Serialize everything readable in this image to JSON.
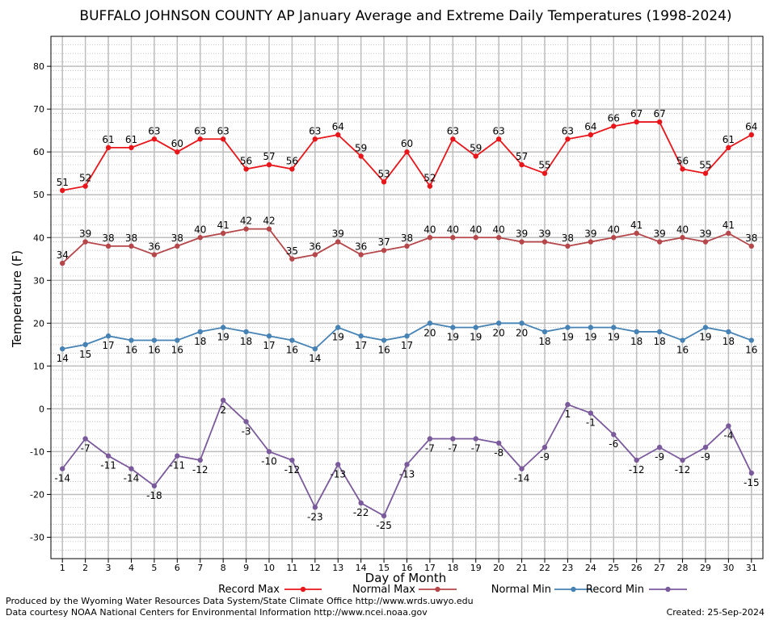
{
  "chart_data": {
    "type": "line",
    "title": "BUFFALO JOHNSON COUNTY AP January Average and Extreme Daily Temperatures (1998-2024)",
    "xlabel": "Day of Month",
    "ylabel": "Temperature (F)",
    "ylim": [
      -35,
      87
    ],
    "yticks": [
      -30,
      -20,
      -10,
      0,
      10,
      20,
      30,
      40,
      50,
      60,
      70,
      80
    ],
    "grid": true,
    "legend_position": "bottom",
    "x": [
      1,
      2,
      3,
      4,
      5,
      6,
      7,
      8,
      9,
      10,
      11,
      12,
      13,
      14,
      15,
      16,
      17,
      18,
      19,
      20,
      21,
      22,
      23,
      24,
      25,
      26,
      27,
      28,
      29,
      30,
      31
    ],
    "series": [
      {
        "name": "Record Max",
        "color": "#e8161b",
        "values": [
          51,
          52,
          61,
          61,
          63,
          60,
          63,
          63,
          56,
          57,
          56,
          63,
          64,
          59,
          53,
          60,
          52,
          63,
          59,
          63,
          57,
          55,
          63,
          64,
          66,
          67,
          67,
          56,
          55,
          61,
          64
        ]
      },
      {
        "name": "Normal Max",
        "color": "#b5474b",
        "values": [
          34,
          39,
          38,
          38,
          36,
          38,
          40,
          41,
          42,
          42,
          35,
          36,
          39,
          36,
          37,
          38,
          40,
          40,
          40,
          40,
          39,
          39,
          38,
          39,
          40,
          41,
          39,
          40,
          39,
          41,
          38
        ]
      },
      {
        "name": "Normal Min",
        "color": "#4682b4",
        "values": [
          14,
          15,
          17,
          16,
          16,
          16,
          18,
          19,
          18,
          17,
          16,
          14,
          19,
          17,
          16,
          17,
          20,
          19,
          19,
          20,
          20,
          18,
          19,
          19,
          19,
          18,
          18,
          16,
          19,
          18,
          16
        ]
      },
      {
        "name": "Record Min",
        "color": "#7b5a9c",
        "values": [
          -14,
          -7,
          -11,
          -14,
          -18,
          -11,
          -12,
          2,
          -3,
          -10,
          -12,
          -23,
          -13,
          -22,
          -25,
          -13,
          -7,
          -7,
          -7,
          -8,
          -14,
          -9,
          1,
          -1,
          -6,
          -12,
          -9,
          -12,
          -9,
          -4,
          -15
        ]
      }
    ]
  },
  "footer": {
    "line1": "Produced by the Wyoming Water Resources Data System/State Climate Office http://www.wrds.uwyo.edu",
    "line2": "Data courtesy NOAA National Centers for Environmental Information http://www.ncei.noaa.gov",
    "created": "Created:  25-Sep-2024"
  }
}
